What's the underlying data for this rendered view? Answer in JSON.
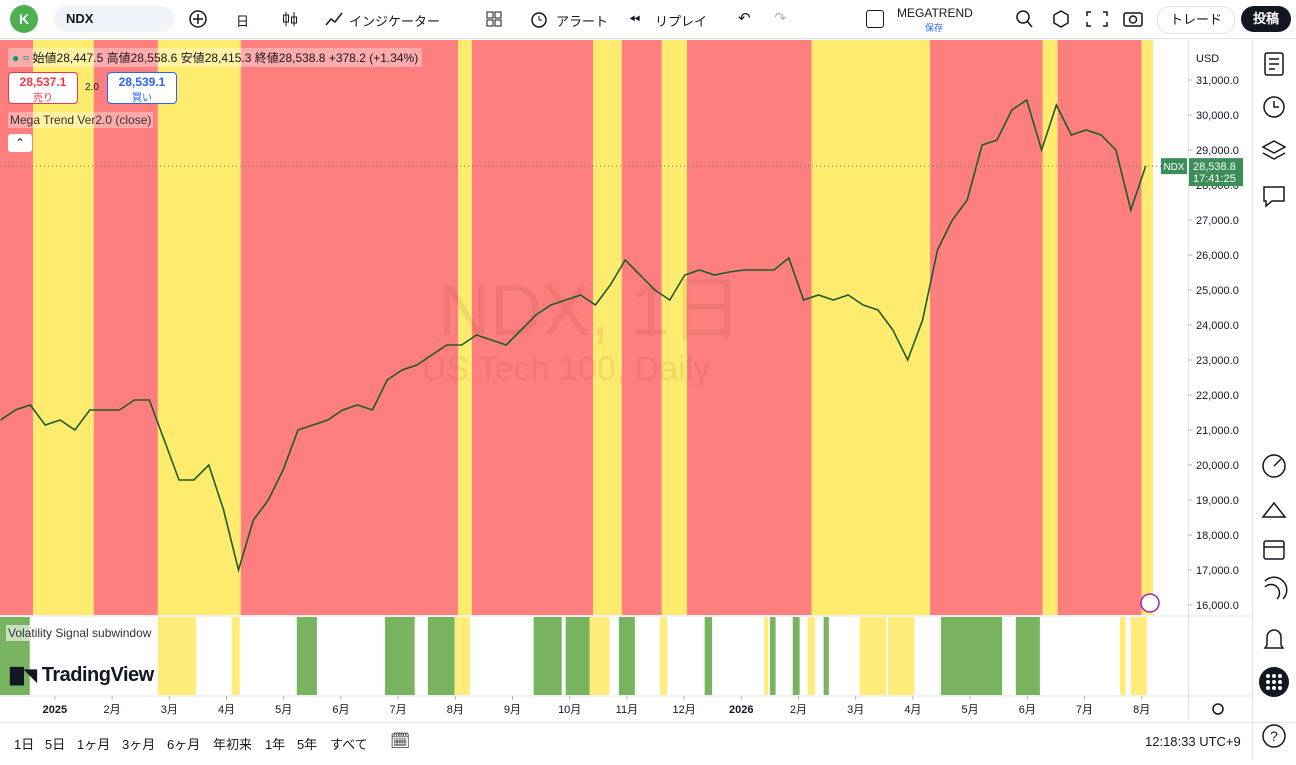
{
  "toolbar": {
    "avatar": "K",
    "symbol": "NDX",
    "interval": "日",
    "indicators": "インジケーター",
    "alert": "アラート",
    "replay": "リプレイ",
    "layout_name": "MEGATREND",
    "save": "保存",
    "trade": "トレード",
    "publish": "投稿"
  },
  "legend": {
    "open_label": "始値",
    "open": "28,447.5",
    "high_label": "高値",
    "high": "28,558.6",
    "low_label": "安値",
    "low": "28,415.3",
    "close_label": "終値",
    "close": "28,538.8",
    "change": "+378.2 (+1.34%)",
    "sell_price": "28,537.1",
    "sell": "売り",
    "spread": "2.0",
    "buy_price": "28,539.1",
    "buy": "買い",
    "indicator": "Mega Trend Ver2.0 (close)"
  },
  "watermark": {
    "title": "NDX, 1日",
    "subtitle": "US Tech 100, Daily"
  },
  "subwindow": {
    "title": "Volatility Signal subwindow",
    "bands": [
      {
        "start": -0.96,
        "end": -0.44,
        "color": "#78b35f"
      },
      {
        "start": 1.8,
        "end": 2.47,
        "color": "#ffec7a"
      },
      {
        "start": 3.09,
        "end": 3.23,
        "color": "#ffec7a"
      },
      {
        "start": 4.23,
        "end": 4.58,
        "color": "#78b35f"
      },
      {
        "start": 5.77,
        "end": 6.29,
        "color": "#78b35f"
      },
      {
        "start": 6.52,
        "end": 6.99,
        "color": "#78b35f"
      },
      {
        "start": 6.99,
        "end": 7.26,
        "color": "#ffec7a"
      },
      {
        "start": 8.37,
        "end": 8.86,
        "color": "#78b35f"
      },
      {
        "start": 8.93,
        "end": 9.35,
        "color": "#78b35f"
      },
      {
        "start": 9.35,
        "end": 9.7,
        "color": "#ffec7a"
      },
      {
        "start": 9.86,
        "end": 10.14,
        "color": "#78b35f"
      },
      {
        "start": 10.58,
        "end": 10.7,
        "color": "#ffec7a"
      },
      {
        "start": 11.36,
        "end": 11.49,
        "color": "#78b35f"
      },
      {
        "start": 12.4,
        "end": 12.47,
        "color": "#ffec7a"
      },
      {
        "start": 12.5,
        "end": 12.6,
        "color": "#78b35f"
      },
      {
        "start": 12.9,
        "end": 13.02,
        "color": "#78b35f"
      },
      {
        "start": 13.16,
        "end": 13.29,
        "color": "#ffec7a"
      },
      {
        "start": 13.44,
        "end": 13.53,
        "color": "#78b35f"
      },
      {
        "start": 14.07,
        "end": 14.53,
        "color": "#ffec7a"
      },
      {
        "start": 14.56,
        "end": 15.03,
        "color": "#ffec7a"
      },
      {
        "start": 15.49,
        "end": 16.56,
        "color": "#78b35f"
      },
      {
        "start": 16.8,
        "end": 17.22,
        "color": "#78b35f"
      },
      {
        "start": 18.62,
        "end": 18.72,
        "color": "#ffec7a"
      },
      {
        "start": 18.81,
        "end": 19.09,
        "color": "#ffec7a"
      }
    ]
  },
  "chart_data": {
    "type": "line",
    "xlim": [
      -0.96,
      19.81
    ],
    "ylim": [
      15714,
      32143
    ],
    "regimes": [
      {
        "start": -0.96,
        "end": -0.38,
        "color": "#ff7f7f"
      },
      {
        "start": -0.38,
        "end": 0.68,
        "color": "#ffec6e"
      },
      {
        "start": 0.68,
        "end": 1.8,
        "color": "#ff7f7f"
      },
      {
        "start": 1.8,
        "end": 3.25,
        "color": "#ffec6e"
      },
      {
        "start": 3.25,
        "end": 7.05,
        "color": "#ff7f7f"
      },
      {
        "start": 7.05,
        "end": 7.29,
        "color": "#ffec6e"
      },
      {
        "start": 7.29,
        "end": 9.41,
        "color": "#ff7f7f"
      },
      {
        "start": 9.41,
        "end": 9.91,
        "color": "#ffec6e"
      },
      {
        "start": 9.91,
        "end": 10.61,
        "color": "#ff7f7f"
      },
      {
        "start": 10.61,
        "end": 11.05,
        "color": "#ffec6e"
      },
      {
        "start": 11.05,
        "end": 13.23,
        "color": "#ff7f7f"
      },
      {
        "start": 13.23,
        "end": 15.3,
        "color": "#ffec6e"
      },
      {
        "start": 15.3,
        "end": 17.27,
        "color": "#ff7f7f"
      },
      {
        "start": 17.27,
        "end": 17.53,
        "color": "#ffec6e"
      },
      {
        "start": 17.53,
        "end": 19.0,
        "color": "#ff7f7f"
      },
      {
        "start": 19.0,
        "end": 19.2,
        "color": "#ffec6e"
      }
    ],
    "x": [
      -0.95,
      -0.69,
      -0.43,
      -0.17,
      0.09,
      0.35,
      0.61,
      0.87,
      1.13,
      1.39,
      1.65,
      1.91,
      2.17,
      2.43,
      2.69,
      2.95,
      3.21,
      3.47,
      3.73,
      3.99,
      4.25,
      4.51,
      4.77,
      5.03,
      5.29,
      5.55,
      5.81,
      6.07,
      6.33,
      6.59,
      6.85,
      7.11,
      7.37,
      7.63,
      7.89,
      8.15,
      8.41,
      8.67,
      8.93,
      9.19,
      9.45,
      9.71,
      9.97,
      10.23,
      10.49,
      10.75,
      11.01,
      11.27,
      11.53,
      11.79,
      12.05,
      12.31,
      12.57,
      12.83,
      13.09,
      13.35,
      13.61,
      13.87,
      14.13,
      14.39,
      14.65,
      14.91,
      15.17,
      15.43,
      15.69,
      15.95,
      16.21,
      16.47,
      16.73,
      16.99,
      17.25,
      17.51,
      17.77,
      18.03,
      18.29,
      18.55,
      18.81,
      19.07
    ],
    "series": [
      {
        "name": "NDX",
        "color": "#1e5b2a",
        "values": [
          21286,
          21571,
          21714,
          21143,
          21286,
          21000,
          21571,
          21571,
          21571,
          21857,
          21857,
          20714,
          19571,
          19571,
          20000,
          18714,
          17000,
          18429,
          19000,
          19857,
          21000,
          21143,
          21286,
          21571,
          21714,
          21571,
          22429,
          22714,
          22857,
          23143,
          23429,
          23429,
          23714,
          23571,
          23429,
          23857,
          24286,
          24571,
          24714,
          24857,
          24571,
          25143,
          25857,
          25429,
          25000,
          24714,
          25429,
          25571,
          25429,
          25514,
          25571,
          25571,
          25571,
          25914,
          24714,
          24857,
          24714,
          24857,
          24571,
          24429,
          23857,
          23000,
          24143,
          26143,
          27000,
          27571,
          29143,
          29286,
          30143,
          30429,
          29000,
          30286,
          29429,
          29571,
          29429,
          29000,
          27286,
          28538.8
        ]
      }
    ],
    "last_price": {
      "value": 28538.8,
      "label": "28,538.8"
    },
    "last_symbol": "NDX",
    "countdown": "17:41:25",
    "currency": "USD",
    "yticks": [
      {
        "value": 16000,
        "label": "16,000.0"
      },
      {
        "value": 17000,
        "label": "17,000.0"
      },
      {
        "value": 18000,
        "label": "18,000.0"
      },
      {
        "value": 19000,
        "label": "19,000.0"
      },
      {
        "value": 20000,
        "label": "20,000.0"
      },
      {
        "value": 21000,
        "label": "21,000.0"
      },
      {
        "value": 22000,
        "label": "22,000.0"
      },
      {
        "value": 23000,
        "label": "23,000.0"
      },
      {
        "value": 24000,
        "label": "24,000.0"
      },
      {
        "value": 25000,
        "label": "25,000.0"
      },
      {
        "value": 26000,
        "label": "26,000.0"
      },
      {
        "value": 27000,
        "label": "27,000.0"
      },
      {
        "value": 28000,
        "label": "28,000.0"
      },
      {
        "value": 29000,
        "label": "29,000.0"
      },
      {
        "value": 30000,
        "label": "30,000.0"
      },
      {
        "value": 31000,
        "label": "31,000.0"
      }
    ],
    "xticks": [
      {
        "value": 0,
        "label": "2025"
      },
      {
        "value": 1,
        "label": "2月"
      },
      {
        "value": 2,
        "label": "3月"
      },
      {
        "value": 3,
        "label": "4月"
      },
      {
        "value": 4,
        "label": "5月"
      },
      {
        "value": 5,
        "label": "6月"
      },
      {
        "value": 6,
        "label": "7月"
      },
      {
        "value": 7,
        "label": "8月"
      },
      {
        "value": 8,
        "label": "9月"
      },
      {
        "value": 9,
        "label": "10月"
      },
      {
        "value": 10,
        "label": "11月"
      },
      {
        "value": 11,
        "label": "12月"
      },
      {
        "value": 12,
        "label": "2026"
      },
      {
        "value": 13,
        "label": "2月"
      },
      {
        "value": 14,
        "label": "3月"
      },
      {
        "value": 15,
        "label": "4月"
      },
      {
        "value": 16,
        "label": "5月"
      },
      {
        "value": 17,
        "label": "6月"
      },
      {
        "value": 18,
        "label": "7月"
      },
      {
        "value": 19,
        "label": "8月"
      }
    ]
  },
  "bottom": {
    "ranges": [
      "1日",
      "5日",
      "1ヶ月",
      "3ヶ月",
      "6ヶ月",
      "年初来",
      "1年",
      "5年",
      "すべて"
    ],
    "clock": "12:18:33 UTC+9",
    "logo": "TradingView"
  }
}
